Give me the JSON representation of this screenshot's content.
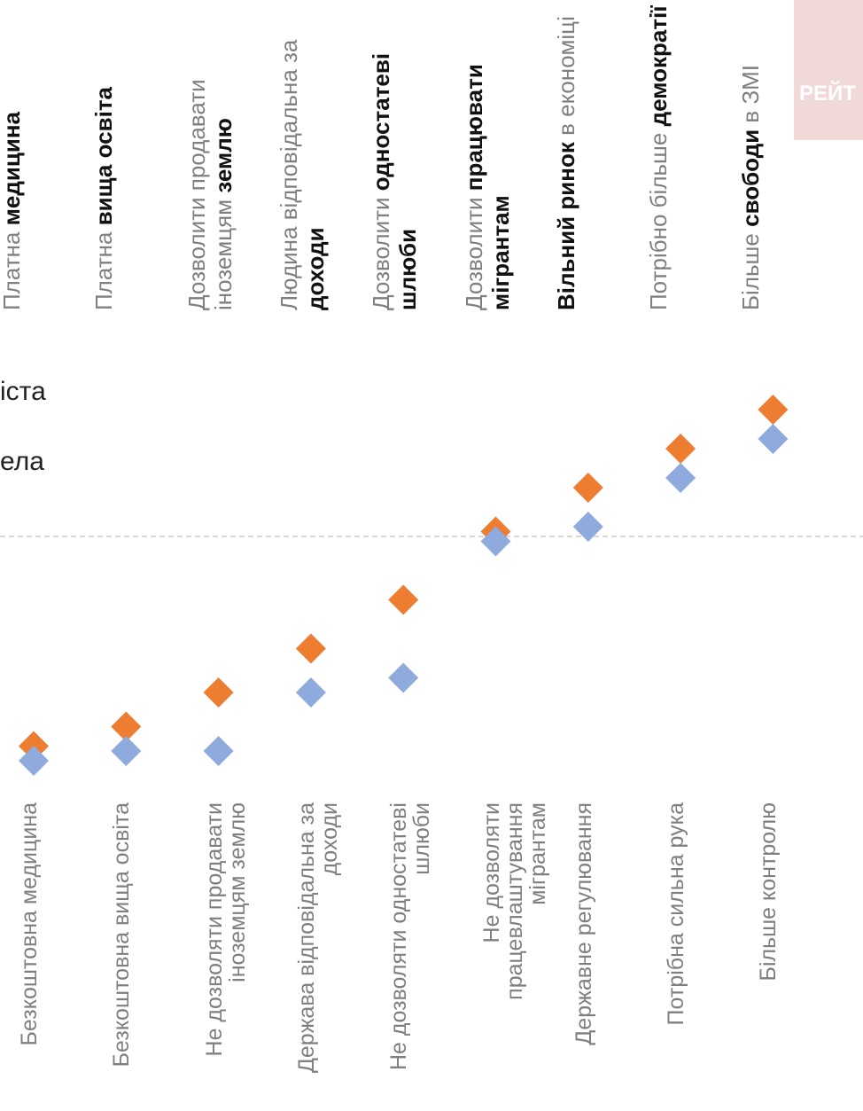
{
  "header": {
    "legend_fragment_1": "іста",
    "legend_fragment_2": "ела",
    "tag": "РЕЙТ"
  },
  "statements_pro": [
    {
      "plain": "Платна ",
      "bold": "медицина",
      "plain_after": ""
    },
    {
      "plain": "Платна ",
      "bold": "вища освіта",
      "plain_after": ""
    },
    {
      "plain": "Дозволити продавати іноземцям ",
      "bold": "землю",
      "plain_after": ""
    },
    {
      "plain": "Людина відповідальна за ",
      "bold": "доходи",
      "plain_after": ""
    },
    {
      "plain": "Дозволити ",
      "bold": "одностатеві шлюби",
      "plain_after": ""
    },
    {
      "plain": "Дозволити ",
      "bold": "працювати мігрантам",
      "plain_after": ""
    },
    {
      "plain": "",
      "bold": "Вільний ринок",
      "plain_after": " в економіці"
    },
    {
      "plain": "Потрібно більше ",
      "bold": "демократії",
      "plain_after": ""
    },
    {
      "plain": "Більше ",
      "bold": "свободи",
      "plain_after": " в ЗМІ"
    }
  ],
  "chart_data": {
    "type": "scatter",
    "categories": [
      "Безкоштовна  медицина",
      "Безкоштовна вища освіта",
      "Не дозволяти продавати іноземцям землю",
      "Держава відповідальна за доходи",
      "Не дозволяти одностатеві шлюби",
      "Не дозволяти працевлаштування мігрантам",
      "Державне регулювання",
      "Потрібна сильна рука",
      "Більше контролю"
    ],
    "series": [
      {
        "color": "#ed7d31",
        "values": [
          0.07,
          0.11,
          0.18,
          0.27,
          0.37,
          0.51,
          0.6,
          0.68,
          0.76
        ]
      },
      {
        "color": "#8faadc",
        "values": [
          0.04,
          0.06,
          0.06,
          0.18,
          0.21,
          0.49,
          0.52,
          0.62,
          0.7
        ]
      }
    ],
    "ylim": [
      0,
      1
    ],
    "reference_value": 0.5,
    "grid": false
  }
}
